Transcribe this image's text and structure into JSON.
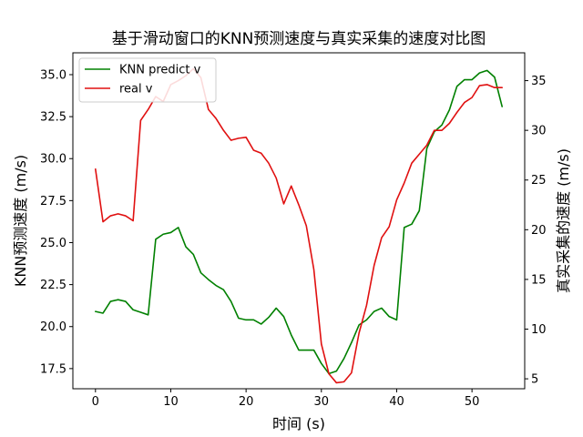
{
  "chart_data": {
    "type": "line",
    "title": "基于滑动窗口的KNN预测速度与真实采集的速度对比图",
    "xlabel": "时间 (s)",
    "ylabel_left": "KNN预测速度 (m/s)",
    "ylabel_right": "真实采集的速度 (m/s)",
    "xlim": [
      -3.0,
      57.0
    ],
    "ylim_left": [
      16.3,
      36.3
    ],
    "ylim_right": [
      4.0,
      37.8
    ],
    "x_ticks": [
      0,
      10,
      20,
      30,
      40,
      50
    ],
    "x_tick_labels": [
      "0",
      "10",
      "20",
      "30",
      "40",
      "50"
    ],
    "y_ticks_left": [
      17.5,
      20.0,
      22.5,
      25.0,
      27.5,
      30.0,
      32.5,
      35.0
    ],
    "y_tick_labels_left": [
      "17.5",
      "20.0",
      "22.5",
      "25.0",
      "27.5",
      "30.0",
      "32.5",
      "35.0"
    ],
    "y_ticks_right": [
      5,
      10,
      15,
      20,
      25,
      30,
      35
    ],
    "y_tick_labels_right": [
      "5",
      "10",
      "15",
      "20",
      "25",
      "30",
      "35"
    ],
    "grid": false,
    "legend_position": "top-left",
    "x": [
      0,
      1,
      2,
      3,
      4,
      5,
      6,
      7,
      8,
      9,
      10,
      11,
      12,
      13,
      14,
      15,
      16,
      17,
      18,
      19,
      20,
      21,
      22,
      23,
      24,
      25,
      26,
      27,
      28,
      29,
      30,
      31,
      32,
      33,
      34,
      35,
      36,
      37,
      38,
      39,
      40,
      41,
      42,
      43,
      44,
      45,
      46,
      47,
      48,
      49,
      50,
      51,
      52,
      53,
      54
    ],
    "series": [
      {
        "name": "KNN predict v",
        "axis": "left",
        "color": "#008000",
        "values": [
          20.9,
          20.8,
          21.5,
          21.6,
          21.5,
          21.0,
          20.85,
          20.7,
          25.2,
          25.5,
          25.6,
          25.9,
          24.75,
          24.3,
          23.2,
          22.8,
          22.45,
          22.2,
          21.5,
          20.5,
          20.4,
          20.4,
          20.15,
          20.55,
          21.1,
          20.6,
          19.5,
          18.6,
          18.6,
          18.6,
          17.8,
          17.2,
          17.35,
          18.1,
          19.05,
          20.1,
          20.4,
          20.9,
          21.1,
          20.6,
          20.4,
          25.9,
          26.1,
          26.9,
          30.6,
          31.6,
          32.0,
          32.9,
          34.3,
          34.7,
          34.7,
          35.1,
          35.25,
          34.85,
          33.1
        ]
      },
      {
        "name": "real v",
        "axis": "right",
        "color": "#e01010",
        "values": [
          26.1,
          20.8,
          21.4,
          21.6,
          21.4,
          20.9,
          31.0,
          32.1,
          33.4,
          32.9,
          34.6,
          35.0,
          35.5,
          36.2,
          35.3,
          32.1,
          31.2,
          30.0,
          29.0,
          29.2,
          29.3,
          28.0,
          27.7,
          26.7,
          25.2,
          22.6,
          24.4,
          22.5,
          20.4,
          16.0,
          8.5,
          5.5,
          4.6,
          4.7,
          5.6,
          9.6,
          12.4,
          16.4,
          19.2,
          20.3,
          23.0,
          24.7,
          26.7,
          27.6,
          28.5,
          30.0,
          30.0,
          30.7,
          31.8,
          32.8,
          33.3,
          34.5,
          34.6,
          34.3,
          34.3
        ]
      }
    ]
  }
}
